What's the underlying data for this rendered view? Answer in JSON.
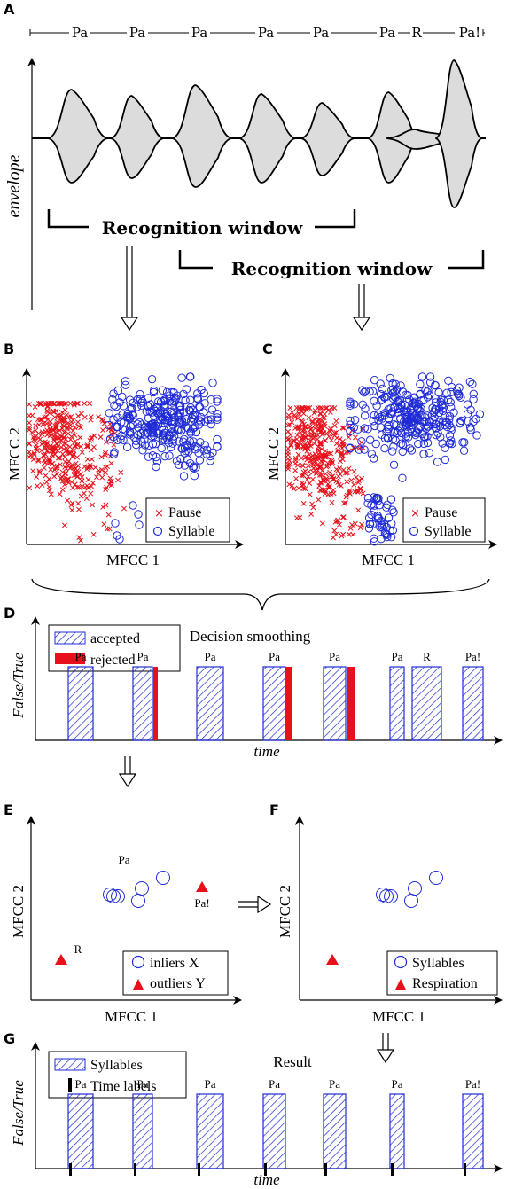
{
  "panel_letters": {
    "a": "A",
    "b": "B",
    "c": "C",
    "d": "D",
    "e": "E",
    "f": "F",
    "g": "G"
  },
  "panel_a": {
    "sequence": [
      "Pa",
      "Pa",
      "Pa",
      "Pa",
      "Pa",
      "Pa",
      "R",
      "Pa!"
    ],
    "y_axis_label": "envelope",
    "window_label_1": "Recognition window",
    "window_label_2": "Recognition window"
  },
  "panel_b": {
    "xlabel": "MFCC 1",
    "ylabel": "MFCC 2",
    "legend": [
      {
        "label": "Pause",
        "marker": "x",
        "color": "#e8101a"
      },
      {
        "label": "Syllable",
        "marker": "o",
        "color": "#1f2bd6"
      }
    ]
  },
  "panel_c": {
    "xlabel": "MFCC 1",
    "ylabel": "MFCC 2",
    "legend": [
      {
        "label": "Pause",
        "marker": "x",
        "color": "#e8101a"
      },
      {
        "label": "Syllable",
        "marker": "o",
        "color": "#1f2bd6"
      }
    ]
  },
  "panel_d": {
    "title": "Decision smoothing",
    "ylabel": "False/True",
    "xlabel": "time",
    "legend": [
      {
        "label": "accepted",
        "style": "hatched-blue"
      },
      {
        "label": "rejected",
        "style": "solid-red"
      }
    ],
    "bar_labels": [
      "Pa",
      "Pa",
      "Pa",
      "Pa",
      "Pa",
      "Pa",
      "R",
      "Pa!"
    ]
  },
  "panel_e": {
    "xlabel": "MFCC 1",
    "ylabel": "MFCC 2",
    "point_labels": {
      "pa": "Pa",
      "pa_excl": "Pa!",
      "r": "R"
    },
    "legend": [
      {
        "label": "inliers X",
        "marker": "o",
        "color": "#1f2bd6"
      },
      {
        "label": "outliers Y",
        "marker": "triangle",
        "color": "#e8101a"
      }
    ]
  },
  "panel_f": {
    "xlabel": "MFCC 1",
    "ylabel": "MFCC 2",
    "legend": [
      {
        "label": "Syllables",
        "marker": "o",
        "color": "#1f2bd6"
      },
      {
        "label": "Respiration",
        "marker": "triangle",
        "color": "#e8101a"
      }
    ]
  },
  "panel_g": {
    "title": "Result",
    "ylabel": "False/True",
    "xlabel": "time",
    "legend": [
      {
        "label": "Syllables",
        "style": "hatched-blue"
      },
      {
        "label": "Time labels",
        "style": "black-tick"
      }
    ],
    "bar_labels": [
      "Pa",
      "Pa",
      "Pa",
      "Pa",
      "Pa",
      "Pa",
      "Pa!"
    ]
  },
  "colors": {
    "blue": "#1f2bd6",
    "red": "#e8101a",
    "envelope_fill": "#dcdcdc"
  }
}
